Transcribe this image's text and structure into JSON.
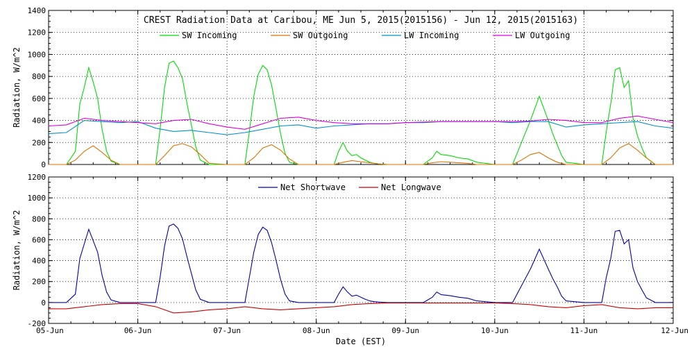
{
  "chart_data": [
    {
      "type": "line",
      "title": "CREST Radiation Data at Caribou, ME   Jun  5, 2015(2015156) - Jun 12, 2015(2015163)",
      "ylabel": "Radiation, W/m^2",
      "xlabel": "",
      "ylim": [
        0,
        1400
      ],
      "yticks": [
        0,
        200,
        400,
        600,
        800,
        1000,
        1200,
        1400
      ],
      "xlim": [
        0,
        7
      ],
      "grid": true,
      "legend_position": "top",
      "series": [
        {
          "name": "SW Incoming",
          "color": "#00dd00",
          "x": [
            0,
            0.2,
            0.3,
            0.35,
            0.4,
            0.45,
            0.5,
            0.55,
            0.6,
            0.65,
            0.7,
            0.8,
            1.0,
            1.2,
            1.25,
            1.3,
            1.35,
            1.4,
            1.45,
            1.5,
            1.55,
            1.6,
            1.65,
            1.7,
            1.8,
            2.0,
            2.2,
            2.25,
            2.3,
            2.35,
            2.4,
            2.45,
            2.5,
            2.55,
            2.6,
            2.65,
            2.7,
            2.8,
            3.0,
            3.2,
            3.25,
            3.3,
            3.35,
            3.4,
            3.45,
            3.5,
            3.55,
            3.6,
            3.65,
            3.7,
            3.8,
            4.0,
            4.2,
            4.3,
            4.35,
            4.4,
            4.5,
            4.6,
            4.7,
            4.8,
            5.0,
            5.2,
            5.3,
            5.4,
            5.5,
            5.6,
            5.65,
            5.7,
            5.75,
            5.8,
            6.0,
            6.2,
            6.25,
            6.3,
            6.35,
            6.4,
            6.45,
            6.5,
            6.55,
            6.6,
            6.65,
            6.7,
            6.8,
            7.0
          ],
          "y": [
            0,
            0,
            120,
            550,
            700,
            880,
            750,
            600,
            320,
            120,
            30,
            0,
            0,
            0,
            320,
            700,
            920,
            940,
            880,
            780,
            560,
            360,
            160,
            40,
            0,
            0,
            0,
            300,
            620,
            820,
            900,
            860,
            720,
            500,
            280,
            100,
            20,
            0,
            0,
            0,
            120,
            200,
            120,
            80,
            90,
            60,
            40,
            20,
            10,
            5,
            0,
            0,
            0,
            60,
            120,
            90,
            80,
            60,
            50,
            20,
            0,
            0,
            200,
            400,
            620,
            400,
            280,
            180,
            80,
            20,
            0,
            0,
            300,
            550,
            860,
            880,
            700,
            760,
            420,
            260,
            150,
            60,
            0,
            0
          ]
        },
        {
          "name": "SW Outgoing",
          "color": "#e07000",
          "x": [
            0,
            0.2,
            0.3,
            0.4,
            0.5,
            0.6,
            0.7,
            0.8,
            1.0,
            1.2,
            1.3,
            1.4,
            1.5,
            1.6,
            1.7,
            1.8,
            2.0,
            2.2,
            2.3,
            2.4,
            2.5,
            2.6,
            2.7,
            2.8,
            3.0,
            3.2,
            3.3,
            3.4,
            3.5,
            3.6,
            3.7,
            3.8,
            4.0,
            4.2,
            4.3,
            4.4,
            4.5,
            4.6,
            4.7,
            4.8,
            5.0,
            5.2,
            5.3,
            5.4,
            5.5,
            5.6,
            5.7,
            5.8,
            6.0,
            6.2,
            6.3,
            6.4,
            6.5,
            6.6,
            6.7,
            6.8,
            7.0
          ],
          "y": [
            0,
            0,
            40,
            120,
            170,
            110,
            40,
            0,
            0,
            0,
            80,
            170,
            190,
            160,
            90,
            10,
            0,
            0,
            60,
            150,
            180,
            130,
            50,
            0,
            0,
            0,
            20,
            35,
            25,
            15,
            5,
            0,
            0,
            0,
            15,
            25,
            20,
            15,
            10,
            0,
            0,
            0,
            40,
            90,
            110,
            60,
            20,
            0,
            0,
            0,
            60,
            150,
            190,
            130,
            60,
            0,
            0
          ]
        },
        {
          "name": "LW Incoming",
          "color": "#0090d0",
          "x": [
            0,
            0.2,
            0.4,
            0.6,
            0.8,
            1.0,
            1.2,
            1.4,
            1.6,
            1.8,
            2.0,
            2.2,
            2.4,
            2.6,
            2.8,
            3.0,
            3.2,
            3.4,
            3.6,
            3.8,
            4.0,
            4.2,
            4.4,
            4.6,
            4.8,
            5.0,
            5.2,
            5.4,
            5.6,
            5.8,
            6.0,
            6.2,
            6.4,
            6.6,
            6.8,
            7.0
          ],
          "y": [
            280,
            290,
            400,
            390,
            380,
            390,
            330,
            300,
            310,
            290,
            270,
            290,
            320,
            350,
            360,
            330,
            350,
            360,
            370,
            370,
            380,
            380,
            390,
            390,
            390,
            390,
            380,
            390,
            390,
            340,
            360,
            370,
            380,
            390,
            350,
            330
          ]
        },
        {
          "name": "LW Outgoing",
          "color": "#e000e0",
          "x": [
            0,
            0.2,
            0.4,
            0.6,
            0.8,
            1.0,
            1.2,
            1.4,
            1.6,
            1.8,
            2.0,
            2.2,
            2.4,
            2.6,
            2.8,
            3.0,
            3.2,
            3.4,
            3.6,
            3.8,
            4.0,
            4.2,
            4.4,
            4.6,
            4.8,
            5.0,
            5.2,
            5.4,
            5.6,
            5.8,
            6.0,
            6.2,
            6.4,
            6.6,
            6.8,
            7.0
          ],
          "y": [
            350,
            360,
            420,
            400,
            390,
            380,
            370,
            400,
            410,
            370,
            340,
            320,
            370,
            420,
            430,
            400,
            380,
            370,
            370,
            370,
            380,
            385,
            390,
            390,
            390,
            390,
            390,
            395,
            410,
            400,
            380,
            380,
            420,
            440,
            410,
            380
          ]
        }
      ]
    },
    {
      "type": "line",
      "title": "",
      "ylabel": "Radiation, W/m^2",
      "xlabel": "Date (EST)",
      "ylim": [
        -200,
        1200
      ],
      "yticks": [
        -200,
        0,
        200,
        400,
        600,
        800,
        1000,
        1200
      ],
      "xlim": [
        0,
        7
      ],
      "xticks": [
        "05-Jun",
        "06-Jun",
        "07-Jun",
        "08-Jun",
        "09-Jun",
        "10-Jun",
        "11-Jun",
        "12-Jun"
      ],
      "grid": true,
      "legend_position": "top",
      "series": [
        {
          "name": "Net Shortwave",
          "color": "#0000b0",
          "x": [
            0,
            0.2,
            0.3,
            0.35,
            0.4,
            0.45,
            0.5,
            0.55,
            0.6,
            0.65,
            0.7,
            0.8,
            1.0,
            1.2,
            1.25,
            1.3,
            1.35,
            1.4,
            1.45,
            1.5,
            1.55,
            1.6,
            1.65,
            1.7,
            1.8,
            2.0,
            2.2,
            2.25,
            2.3,
            2.35,
            2.4,
            2.45,
            2.5,
            2.55,
            2.6,
            2.65,
            2.7,
            2.8,
            3.0,
            3.2,
            3.25,
            3.3,
            3.35,
            3.4,
            3.45,
            3.5,
            3.55,
            3.6,
            3.65,
            3.7,
            3.8,
            4.0,
            4.2,
            4.3,
            4.35,
            4.4,
            4.5,
            4.6,
            4.7,
            4.8,
            5.0,
            5.2,
            5.3,
            5.4,
            5.5,
            5.6,
            5.65,
            5.7,
            5.75,
            5.8,
            6.0,
            6.2,
            6.25,
            6.3,
            6.35,
            6.4,
            6.45,
            6.5,
            6.55,
            6.6,
            6.65,
            6.7,
            6.8,
            7.0
          ],
          "y": [
            0,
            0,
            80,
            420,
            560,
            700,
            590,
            480,
            260,
            100,
            25,
            0,
            0,
            0,
            240,
            540,
            730,
            750,
            710,
            610,
            440,
            280,
            120,
            30,
            0,
            0,
            0,
            240,
            480,
            650,
            720,
            690,
            570,
            400,
            220,
            80,
            15,
            0,
            0,
            0,
            80,
            150,
            100,
            60,
            70,
            50,
            30,
            15,
            8,
            4,
            0,
            0,
            0,
            50,
            100,
            75,
            65,
            50,
            40,
            15,
            0,
            0,
            160,
            320,
            510,
            320,
            230,
            150,
            60,
            15,
            0,
            0,
            240,
            420,
            680,
            690,
            560,
            600,
            330,
            200,
            120,
            45,
            0,
            0
          ]
        },
        {
          "name": "Net Longwave",
          "color": "#cc0000",
          "x": [
            0,
            0.2,
            0.4,
            0.6,
            0.8,
            1.0,
            1.2,
            1.4,
            1.6,
            1.8,
            2.0,
            2.2,
            2.4,
            2.6,
            2.8,
            3.0,
            3.2,
            3.4,
            3.6,
            3.8,
            4.0,
            4.2,
            4.4,
            4.6,
            4.8,
            5.0,
            5.2,
            5.4,
            5.6,
            5.8,
            6.0,
            6.2,
            6.4,
            6.6,
            6.8,
            7.0
          ],
          "y": [
            -60,
            -60,
            -40,
            -20,
            -10,
            -10,
            -40,
            -100,
            -90,
            -70,
            -60,
            -40,
            -60,
            -70,
            -60,
            -50,
            -40,
            -20,
            -10,
            -5,
            -5,
            -5,
            -5,
            -5,
            -5,
            -5,
            -10,
            -20,
            -40,
            -50,
            -30,
            -20,
            -50,
            -60,
            -50,
            -50
          ]
        }
      ]
    }
  ]
}
